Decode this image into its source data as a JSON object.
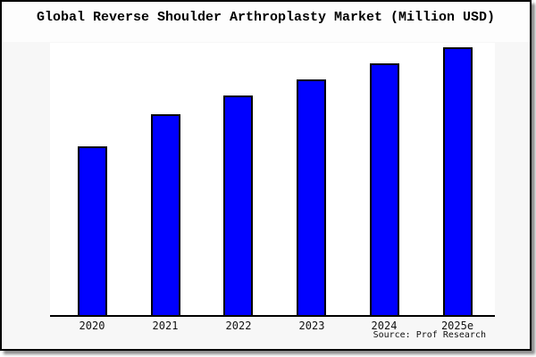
{
  "title": "Global Reverse Shoulder Arthroplasty Market (Million USD)",
  "source": {
    "text": "Source: Prof Research"
  },
  "colors": {
    "bar_fill": "#0000FF",
    "bar_outline": "#000000",
    "chart_background": "#F7F7F7",
    "plot_background": "#FFFFFF",
    "frame_border": "#000000",
    "axis": "#000000"
  },
  "chart_data": {
    "type": "bar",
    "title": "Global Reverse Shoulder Arthroplasty Market (Million USD)",
    "categories": [
      "2020",
      "2021",
      "2022",
      "2023",
      "2024",
      "2025e"
    ],
    "values": [
      63,
      75,
      82,
      88,
      94,
      100
    ],
    "values_unit": "percent of tallest bar (chart shows no numeric y-axis)",
    "xlabel": "",
    "ylabel": "",
    "ylim": [
      0,
      101
    ],
    "grid": false,
    "legend_shown": false,
    "y_axis_labels_shown": false,
    "bar_color": "#0000FF",
    "annotation": "Source: Prof Research"
  }
}
